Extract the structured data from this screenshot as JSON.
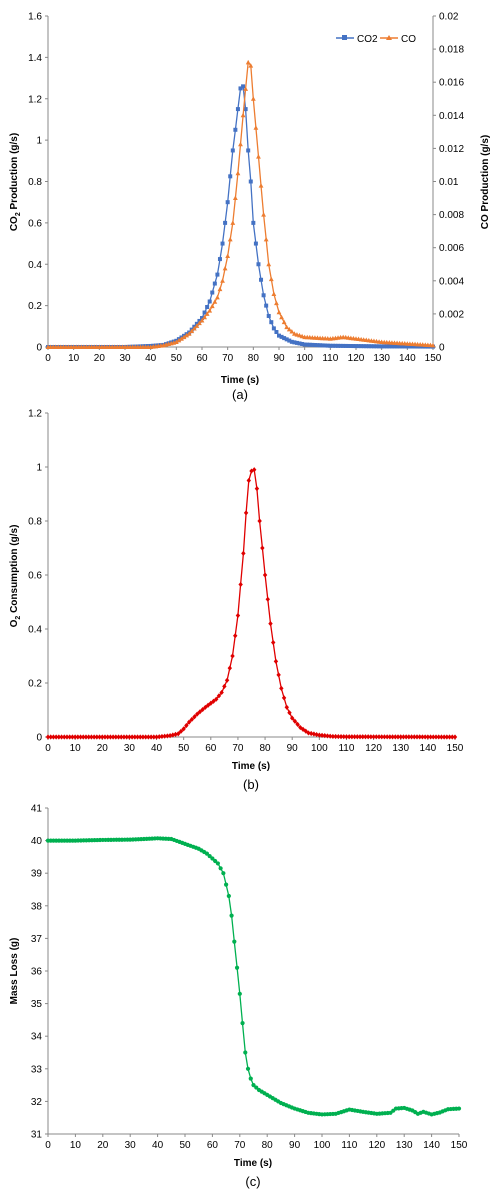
{
  "chart_data": [
    {
      "type": "line",
      "panel": "(a)",
      "xlabel": "Time (s)",
      "ylabel": "CO2 Production (g/s)",
      "ylabel_parts": [
        "CO",
        "2",
        " Production (g/s)"
      ],
      "y2label": "CO Production (g/s)",
      "xlim": [
        0,
        150
      ],
      "ylim": [
        0,
        1.6
      ],
      "y2lim": [
        0,
        0.02
      ],
      "xticks": [
        "0",
        "10",
        "20",
        "30",
        "40",
        "50",
        "60",
        "70",
        "80",
        "90",
        "100",
        "110",
        "120",
        "130",
        "140",
        "150"
      ],
      "yticks": [
        "0",
        "0.2",
        "0.4",
        "0.6",
        "0.8",
        "1",
        "1.2",
        "1.4",
        "1.6"
      ],
      "y2ticks": [
        "0",
        "0.002",
        "0.004",
        "0.006",
        "0.008",
        "0.01",
        "0.012",
        "0.014",
        "0.016",
        "0.018",
        "0.02"
      ],
      "legend": "top-right",
      "series": [
        {
          "name": "CO2",
          "axis": "left",
          "color": "#4472C4",
          "marker": "square",
          "points": [
            [
              0,
              0
            ],
            [
              30,
              0
            ],
            [
              40,
              0.005
            ],
            [
              45,
              0.01
            ],
            [
              50,
              0.03
            ],
            [
              55,
              0.07
            ],
            [
              60,
              0.14
            ],
            [
              63,
              0.22
            ],
            [
              66,
              0.35
            ],
            [
              68,
              0.5
            ],
            [
              70,
              0.7
            ],
            [
              72,
              0.95
            ],
            [
              74,
              1.15
            ],
            [
              75,
              1.25
            ],
            [
              76,
              1.26
            ],
            [
              77,
              1.15
            ],
            [
              78,
              0.95
            ],
            [
              79,
              0.8
            ],
            [
              80,
              0.6
            ],
            [
              82,
              0.4
            ],
            [
              84,
              0.25
            ],
            [
              86,
              0.15
            ],
            [
              88,
              0.09
            ],
            [
              90,
              0.055
            ],
            [
              95,
              0.025
            ],
            [
              100,
              0.012
            ],
            [
              110,
              0.006
            ],
            [
              130,
              0.003
            ],
            [
              150,
              0.002
            ]
          ]
        },
        {
          "name": "CO",
          "axis": "right",
          "color": "#ED7D31",
          "marker": "triangle",
          "points": [
            [
              0,
              0
            ],
            [
              40,
              0
            ],
            [
              45,
              0.0001
            ],
            [
              50,
              0.0003
            ],
            [
              55,
              0.0008
            ],
            [
              60,
              0.0016
            ],
            [
              63,
              0.0022
            ],
            [
              66,
              0.003
            ],
            [
              68,
              0.004
            ],
            [
              70,
              0.0055
            ],
            [
              72,
              0.0075
            ],
            [
              74,
              0.0105
            ],
            [
              76,
              0.014
            ],
            [
              78,
              0.0172
            ],
            [
              79,
              0.017
            ],
            [
              80,
              0.015
            ],
            [
              82,
              0.0115
            ],
            [
              84,
              0.008
            ],
            [
              86,
              0.005
            ],
            [
              88,
              0.0032
            ],
            [
              90,
              0.0021
            ],
            [
              93,
              0.0012
            ],
            [
              96,
              0.0008
            ],
            [
              100,
              0.0006
            ],
            [
              110,
              0.0005
            ],
            [
              115,
              0.0006
            ],
            [
              120,
              0.0005
            ],
            [
              130,
              0.0003
            ],
            [
              140,
              0.0002
            ],
            [
              150,
              0.0001
            ]
          ]
        }
      ]
    },
    {
      "type": "line",
      "panel": "(b)",
      "xlabel": "Time (s)",
      "ylabel": "O2 Consumption (g/s)",
      "ylabel_parts": [
        "O",
        "2",
        " Consumption (g/s)"
      ],
      "xlim": [
        0,
        150
      ],
      "ylim": [
        0,
        1.2
      ],
      "xticks": [
        "0",
        "10",
        "20",
        "30",
        "40",
        "50",
        "60",
        "70",
        "80",
        "90",
        "100",
        "110",
        "120",
        "130",
        "140",
        "150"
      ],
      "yticks": [
        "0",
        "0.2",
        "0.4",
        "0.6",
        "0.8",
        "1",
        "1.2"
      ],
      "series": [
        {
          "color": "#E00000",
          "marker": "diamond",
          "points": [
            [
              0,
              0
            ],
            [
              40,
              0
            ],
            [
              45,
              0.005
            ],
            [
              48,
              0.012
            ],
            [
              50,
              0.03
            ],
            [
              52,
              0.055
            ],
            [
              55,
              0.085
            ],
            [
              58,
              0.11
            ],
            [
              60,
              0.125
            ],
            [
              62,
              0.14
            ],
            [
              64,
              0.165
            ],
            [
              66,
              0.21
            ],
            [
              68,
              0.3
            ],
            [
              70,
              0.45
            ],
            [
              72,
              0.68
            ],
            [
              73,
              0.83
            ],
            [
              74,
              0.95
            ],
            [
              75,
              0.985
            ],
            [
              76,
              0.99
            ],
            [
              77,
              0.92
            ],
            [
              78,
              0.8
            ],
            [
              80,
              0.6
            ],
            [
              82,
              0.42
            ],
            [
              84,
              0.28
            ],
            [
              86,
              0.18
            ],
            [
              88,
              0.11
            ],
            [
              90,
              0.07
            ],
            [
              93,
              0.035
            ],
            [
              96,
              0.015
            ],
            [
              100,
              0.007
            ],
            [
              105,
              0.002
            ],
            [
              110,
              0.001
            ],
            [
              150,
              0
            ]
          ]
        }
      ]
    },
    {
      "type": "line",
      "panel": "(c)",
      "xlabel": "Time (s)",
      "ylabel": "Mass Loss (g)",
      "xlim": [
        0,
        150
      ],
      "ylim": [
        31,
        41
      ],
      "xticks": [
        "0",
        "10",
        "20",
        "30",
        "40",
        "50",
        "60",
        "70",
        "80",
        "90",
        "100",
        "110",
        "120",
        "130",
        "140",
        "150"
      ],
      "yticks": [
        "31",
        "32",
        "33",
        "34",
        "35",
        "36",
        "37",
        "38",
        "39",
        "40",
        "41"
      ],
      "series": [
        {
          "color": "#00B050",
          "marker": "circle",
          "points": [
            [
              0,
              40
            ],
            [
              10,
              40
            ],
            [
              20,
              40.02
            ],
            [
              30,
              40.03
            ],
            [
              35,
              40.05
            ],
            [
              40,
              40.07
            ],
            [
              45,
              40.05
            ],
            [
              50,
              39.9
            ],
            [
              55,
              39.75
            ],
            [
              58,
              39.6
            ],
            [
              60,
              39.45
            ],
            [
              62,
              39.3
            ],
            [
              64,
              39
            ],
            [
              66,
              38.3
            ],
            [
              67,
              37.7
            ],
            [
              68,
              36.9
            ],
            [
              69,
              36.1
            ],
            [
              70,
              35.3
            ],
            [
              71,
              34.4
            ],
            [
              72,
              33.5
            ],
            [
              73,
              33
            ],
            [
              74,
              32.7
            ],
            [
              75,
              32.5
            ],
            [
              77,
              32.35
            ],
            [
              80,
              32.2
            ],
            [
              85,
              31.95
            ],
            [
              90,
              31.78
            ],
            [
              95,
              31.65
            ],
            [
              100,
              31.6
            ],
            [
              105,
              31.62
            ],
            [
              110,
              31.75
            ],
            [
              115,
              31.68
            ],
            [
              120,
              31.62
            ],
            [
              125,
              31.65
            ],
            [
              127,
              31.78
            ],
            [
              130,
              31.8
            ],
            [
              133,
              31.72
            ],
            [
              135,
              31.62
            ],
            [
              137,
              31.68
            ],
            [
              140,
              31.6
            ],
            [
              143,
              31.66
            ],
            [
              146,
              31.76
            ],
            [
              150,
              31.78
            ]
          ]
        }
      ]
    }
  ],
  "captions": [
    "(a)",
    "(b)",
    "(c)"
  ],
  "colors": {
    "co2": "#4472C4",
    "co": "#ED7D31",
    "o2": "#E00000",
    "mass": "#00B050"
  }
}
